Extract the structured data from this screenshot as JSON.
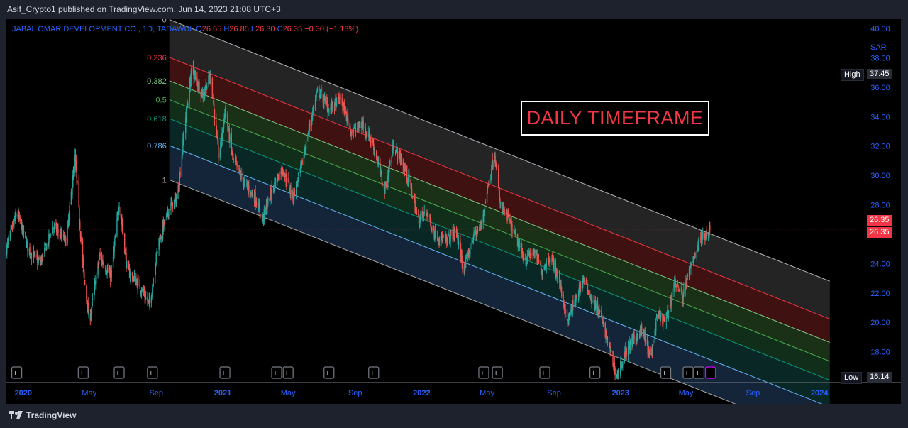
{
  "header": {
    "published_by": "Asif_Crypto1 published on TradingView.com, Jun 14, 2023 21:08 UTC+3"
  },
  "symbol": {
    "name": "JABAL OMAR DEVELOPMENT CO., 1D, TADAWUL",
    "open_label": "O",
    "open": "26.65",
    "high_label": "H",
    "high": "26.85",
    "low_label": "L",
    "low": "26.30",
    "close_label": "C",
    "close": "26.35",
    "change": "−0.30 (−1.13%)"
  },
  "currency": "SAR",
  "annotation": "DAILY TIMEFRAME",
  "footer": {
    "brand": "TradingView"
  },
  "price_scale": {
    "high_label": "High",
    "high_value": "37.45",
    "low_label": "Low",
    "low_value": "16.14",
    "last_price": "26.35",
    "last_price_2": "26.35"
  },
  "colors": {
    "background": "#000000",
    "up_candle": "#26a69a",
    "down_candle": "#ef5350",
    "axis_text": "#2962ff",
    "last_price": "#f23645",
    "annotation_text": "#f23645"
  },
  "chart_data": {
    "type": "candlestick",
    "y_axis": {
      "min": 16,
      "max": 40,
      "ticks": [
        "40.00",
        "38.00",
        "36.00",
        "34.00",
        "32.00",
        "30.00",
        "28.00",
        "26.00",
        "24.00",
        "22.00",
        "20.00",
        "18.00"
      ],
      "position": "right"
    },
    "x_axis": {
      "ticks": [
        "2020",
        "May",
        "Sep",
        "2021",
        "May",
        "Sep",
        "2022",
        "May",
        "Sep",
        "2023",
        "May",
        "Sep",
        "2024"
      ]
    },
    "fib_channel": {
      "levels": [
        {
          "label": "0",
          "ratio": 0,
          "color": "#b2b5be"
        },
        {
          "label": "0.236",
          "ratio": 0.236,
          "color": "#f23645"
        },
        {
          "label": "0.382",
          "ratio": 0.382,
          "color": "#81c784"
        },
        {
          "label": "0.5",
          "ratio": 0.5,
          "color": "#4caf50"
        },
        {
          "label": "0.618",
          "ratio": 0.618,
          "color": "#089981"
        },
        {
          "label": "0.786",
          "ratio": 0.786,
          "color": "#64b5f6"
        },
        {
          "label": "1",
          "ratio": 1,
          "color": "#a8a8a8"
        }
      ],
      "fills": [
        "#2a2a2a",
        "#4a1414",
        "#1e3a1c",
        "#14361e",
        "#0a2e2a",
        "#172c44"
      ]
    },
    "price_path": [
      {
        "date": "2019-12-01",
        "price": 25.0
      },
      {
        "date": "2019-12-20",
        "price": 27.5
      },
      {
        "date": "2020-01-10",
        "price": 25.0
      },
      {
        "date": "2020-02-01",
        "price": 24.0
      },
      {
        "date": "2020-02-25",
        "price": 26.5
      },
      {
        "date": "2020-03-20",
        "price": 25.5
      },
      {
        "date": "2020-04-05",
        "price": 31.2
      },
      {
        "date": "2020-04-20",
        "price": 23.5
      },
      {
        "date": "2020-05-01",
        "price": 20.0
      },
      {
        "date": "2020-05-20",
        "price": 24.5
      },
      {
        "date": "2020-06-10",
        "price": 23.0
      },
      {
        "date": "2020-06-25",
        "price": 28.2
      },
      {
        "date": "2020-07-10",
        "price": 23.5
      },
      {
        "date": "2020-08-01",
        "price": 22.5
      },
      {
        "date": "2020-08-20",
        "price": 21.2
      },
      {
        "date": "2020-09-05",
        "price": 25.5
      },
      {
        "date": "2020-09-25",
        "price": 27.8
      },
      {
        "date": "2020-10-10",
        "price": 28.5
      },
      {
        "date": "2020-10-25",
        "price": 34.0
      },
      {
        "date": "2020-11-05",
        "price": 37.2
      },
      {
        "date": "2020-11-25",
        "price": 35.5
      },
      {
        "date": "2020-12-10",
        "price": 36.8
      },
      {
        "date": "2020-12-25",
        "price": 31.0
      },
      {
        "date": "2021-01-05",
        "price": 34.5
      },
      {
        "date": "2021-01-20",
        "price": 31.0
      },
      {
        "date": "2021-02-10",
        "price": 29.5
      },
      {
        "date": "2021-03-01",
        "price": 28.5
      },
      {
        "date": "2021-03-15",
        "price": 27.0
      },
      {
        "date": "2021-04-01",
        "price": 29.0
      },
      {
        "date": "2021-04-20",
        "price": 30.5
      },
      {
        "date": "2021-05-10",
        "price": 28.5
      },
      {
        "date": "2021-05-25",
        "price": 30.5
      },
      {
        "date": "2021-06-10",
        "price": 33.5
      },
      {
        "date": "2021-06-25",
        "price": 35.8
      },
      {
        "date": "2021-07-15",
        "price": 34.5
      },
      {
        "date": "2021-08-05",
        "price": 35.2
      },
      {
        "date": "2021-08-25",
        "price": 33.0
      },
      {
        "date": "2021-09-15",
        "price": 33.5
      },
      {
        "date": "2021-10-05",
        "price": 32.0
      },
      {
        "date": "2021-10-25",
        "price": 29.0
      },
      {
        "date": "2021-11-10",
        "price": 32.0
      },
      {
        "date": "2021-11-25",
        "price": 31.0
      },
      {
        "date": "2021-12-10",
        "price": 29.5
      },
      {
        "date": "2021-12-25",
        "price": 27.0
      },
      {
        "date": "2022-01-10",
        "price": 27.5
      },
      {
        "date": "2022-01-25",
        "price": 26.0
      },
      {
        "date": "2022-02-15",
        "price": 25.5
      },
      {
        "date": "2022-03-05",
        "price": 26.2
      },
      {
        "date": "2022-03-20",
        "price": 23.5
      },
      {
        "date": "2022-04-05",
        "price": 25.8
      },
      {
        "date": "2022-04-20",
        "price": 26.5
      },
      {
        "date": "2022-05-05",
        "price": 29.8
      },
      {
        "date": "2022-05-15",
        "price": 31.6
      },
      {
        "date": "2022-05-25",
        "price": 28.0
      },
      {
        "date": "2022-06-10",
        "price": 27.0
      },
      {
        "date": "2022-06-25",
        "price": 25.5
      },
      {
        "date": "2022-07-10",
        "price": 24.2
      },
      {
        "date": "2022-07-25",
        "price": 24.8
      },
      {
        "date": "2022-08-10",
        "price": 23.5
      },
      {
        "date": "2022-08-25",
        "price": 24.5
      },
      {
        "date": "2022-09-10",
        "price": 23.0
      },
      {
        "date": "2022-09-25",
        "price": 20.0
      },
      {
        "date": "2022-10-10",
        "price": 21.5
      },
      {
        "date": "2022-10-25",
        "price": 23.0
      },
      {
        "date": "2022-11-10",
        "price": 21.5
      },
      {
        "date": "2022-11-25",
        "price": 20.5
      },
      {
        "date": "2022-12-10",
        "price": 18.5
      },
      {
        "date": "2022-12-25",
        "price": 16.3
      },
      {
        "date": "2023-01-10",
        "price": 18.0
      },
      {
        "date": "2023-01-25",
        "price": 18.8
      },
      {
        "date": "2023-02-10",
        "price": 19.5
      },
      {
        "date": "2023-02-25",
        "price": 17.5
      },
      {
        "date": "2023-03-10",
        "price": 20.5
      },
      {
        "date": "2023-03-25",
        "price": 20.0
      },
      {
        "date": "2023-04-10",
        "price": 22.8
      },
      {
        "date": "2023-04-25",
        "price": 21.8
      },
      {
        "date": "2023-05-10",
        "price": 23.8
      },
      {
        "date": "2023-05-25",
        "price": 25.5
      },
      {
        "date": "2023-06-05",
        "price": 26.0
      },
      {
        "date": "2023-06-14",
        "price": 26.35
      }
    ],
    "high": 37.45,
    "low": 16.14,
    "last": 26.35,
    "event_markers": "E"
  }
}
